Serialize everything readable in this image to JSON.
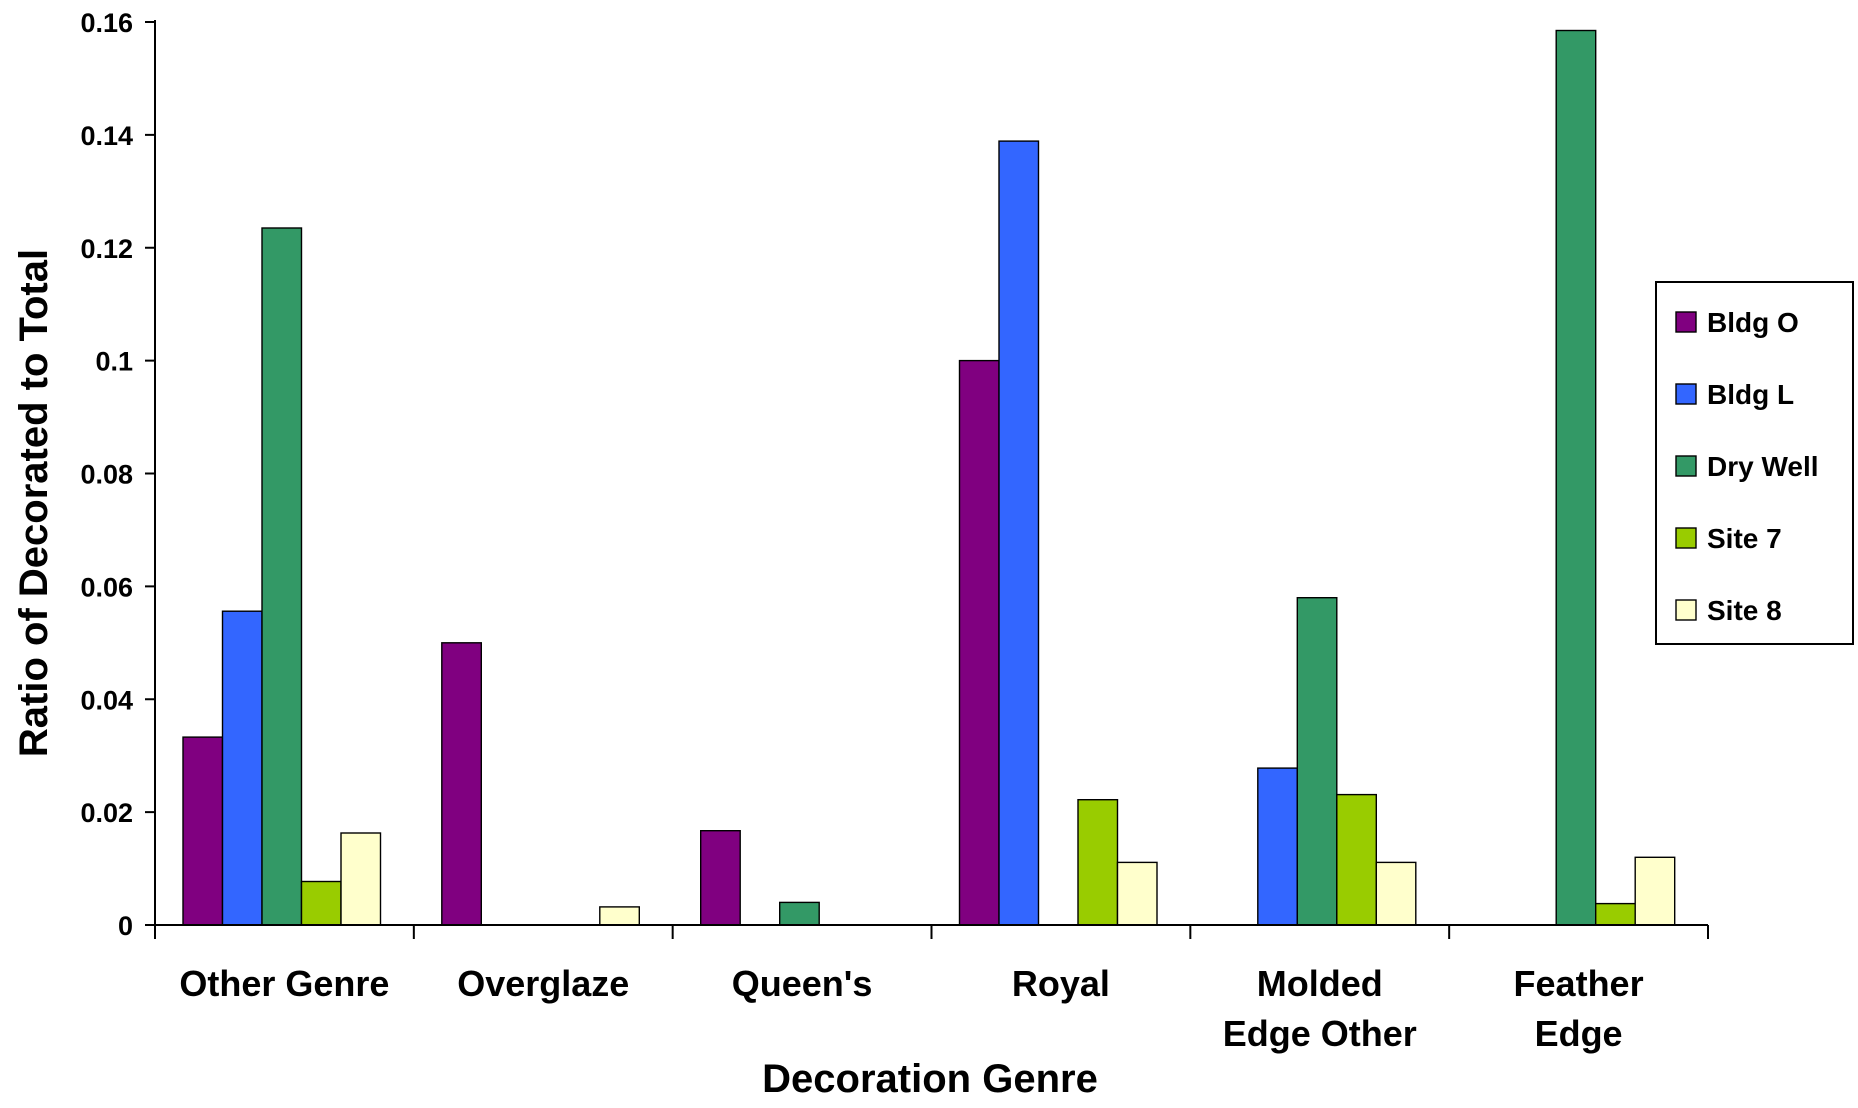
{
  "chart_data": {
    "type": "bar",
    "title": "",
    "xlabel": "Decoration Genre",
    "ylabel": "Ratio of Decorated to Total",
    "ylim": [
      0,
      0.16
    ],
    "yticks": [
      "0",
      "0.02",
      "0.04",
      "0.06",
      "0.08",
      "0.1",
      "0.12",
      "0.14",
      "0.16"
    ],
    "categories": [
      [
        "Other Genre"
      ],
      [
        "Overglaze"
      ],
      [
        "Queen's"
      ],
      [
        "Royal"
      ],
      [
        "Molded",
        "Edge Other"
      ],
      [
        "Feather",
        "Edge"
      ]
    ],
    "series": [
      {
        "name": "Bldg O",
        "color": "#800080",
        "values": [
          0.0333,
          0.05,
          0.0167,
          0.1,
          0,
          0
        ]
      },
      {
        "name": "Bldg L",
        "color": "#3366FF",
        "values": [
          0.0556,
          0,
          0,
          0.1389,
          0.0278,
          0
        ]
      },
      {
        "name": "Dry Well",
        "color": "#339966",
        "values": [
          0.1235,
          0,
          0.004,
          0,
          0.058,
          0.1585
        ]
      },
      {
        "name": "Site 7",
        "color": "#99CC00",
        "values": [
          0.0077,
          0,
          0,
          0.0222,
          0.0231,
          0.0038
        ]
      },
      {
        "name": "Site 8",
        "color": "#FFFFCC",
        "values": [
          0.0163,
          0.0032,
          0,
          0.0111,
          0.0111,
          0.012
        ]
      }
    ],
    "grid": false,
    "legend": "right"
  }
}
